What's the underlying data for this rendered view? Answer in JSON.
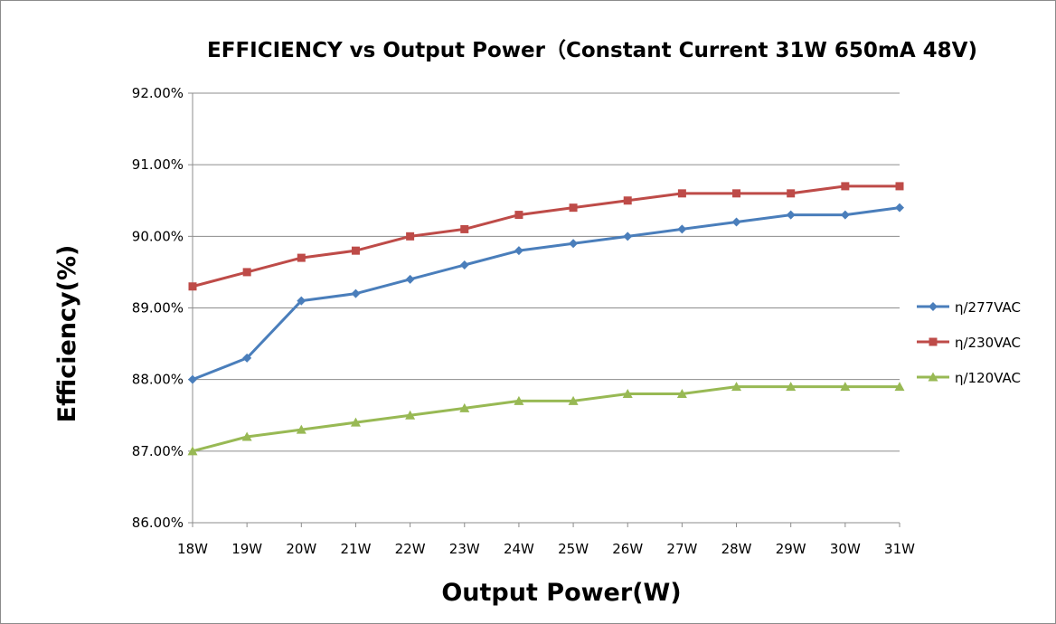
{
  "chart_data": {
    "type": "line",
    "title": "EFFICIENCY vs Output Power（Constant Current 31W 650mA 48V)",
    "xlabel": "Output Power(W)",
    "ylabel": "Efficiency(%)",
    "categories": [
      "18W",
      "19W",
      "20W",
      "21W",
      "22W",
      "23W",
      "24W",
      "25W",
      "26W",
      "27W",
      "28W",
      "29W",
      "30W",
      "31W"
    ],
    "ylim": [
      86,
      92
    ],
    "yticks": [
      86,
      87,
      88,
      89,
      90,
      91,
      92
    ],
    "ytick_labels": [
      "86.00%",
      "87.00%",
      "88.00%",
      "89.00%",
      "90.00%",
      "91.00%",
      "92.00%"
    ],
    "grid": "horizontal",
    "legend_position": "right",
    "series": [
      {
        "name": "η/277VAC",
        "color": "#4a7ebb",
        "marker": "diamond",
        "values": [
          88.0,
          88.3,
          89.1,
          89.2,
          89.4,
          89.6,
          89.8,
          89.9,
          90.0,
          90.1,
          90.2,
          90.3,
          90.3,
          90.4
        ]
      },
      {
        "name": "η/230VAC",
        "color": "#be4b48",
        "marker": "square",
        "values": [
          89.3,
          89.5,
          89.7,
          89.8,
          90.0,
          90.1,
          90.3,
          90.4,
          90.5,
          90.6,
          90.6,
          90.6,
          90.7,
          90.7
        ]
      },
      {
        "name": "η/120VAC",
        "color": "#98b954",
        "marker": "triangle",
        "values": [
          87.0,
          87.2,
          87.3,
          87.4,
          87.5,
          87.6,
          87.7,
          87.7,
          87.8,
          87.8,
          87.9,
          87.9,
          87.9,
          87.9
        ]
      }
    ]
  }
}
